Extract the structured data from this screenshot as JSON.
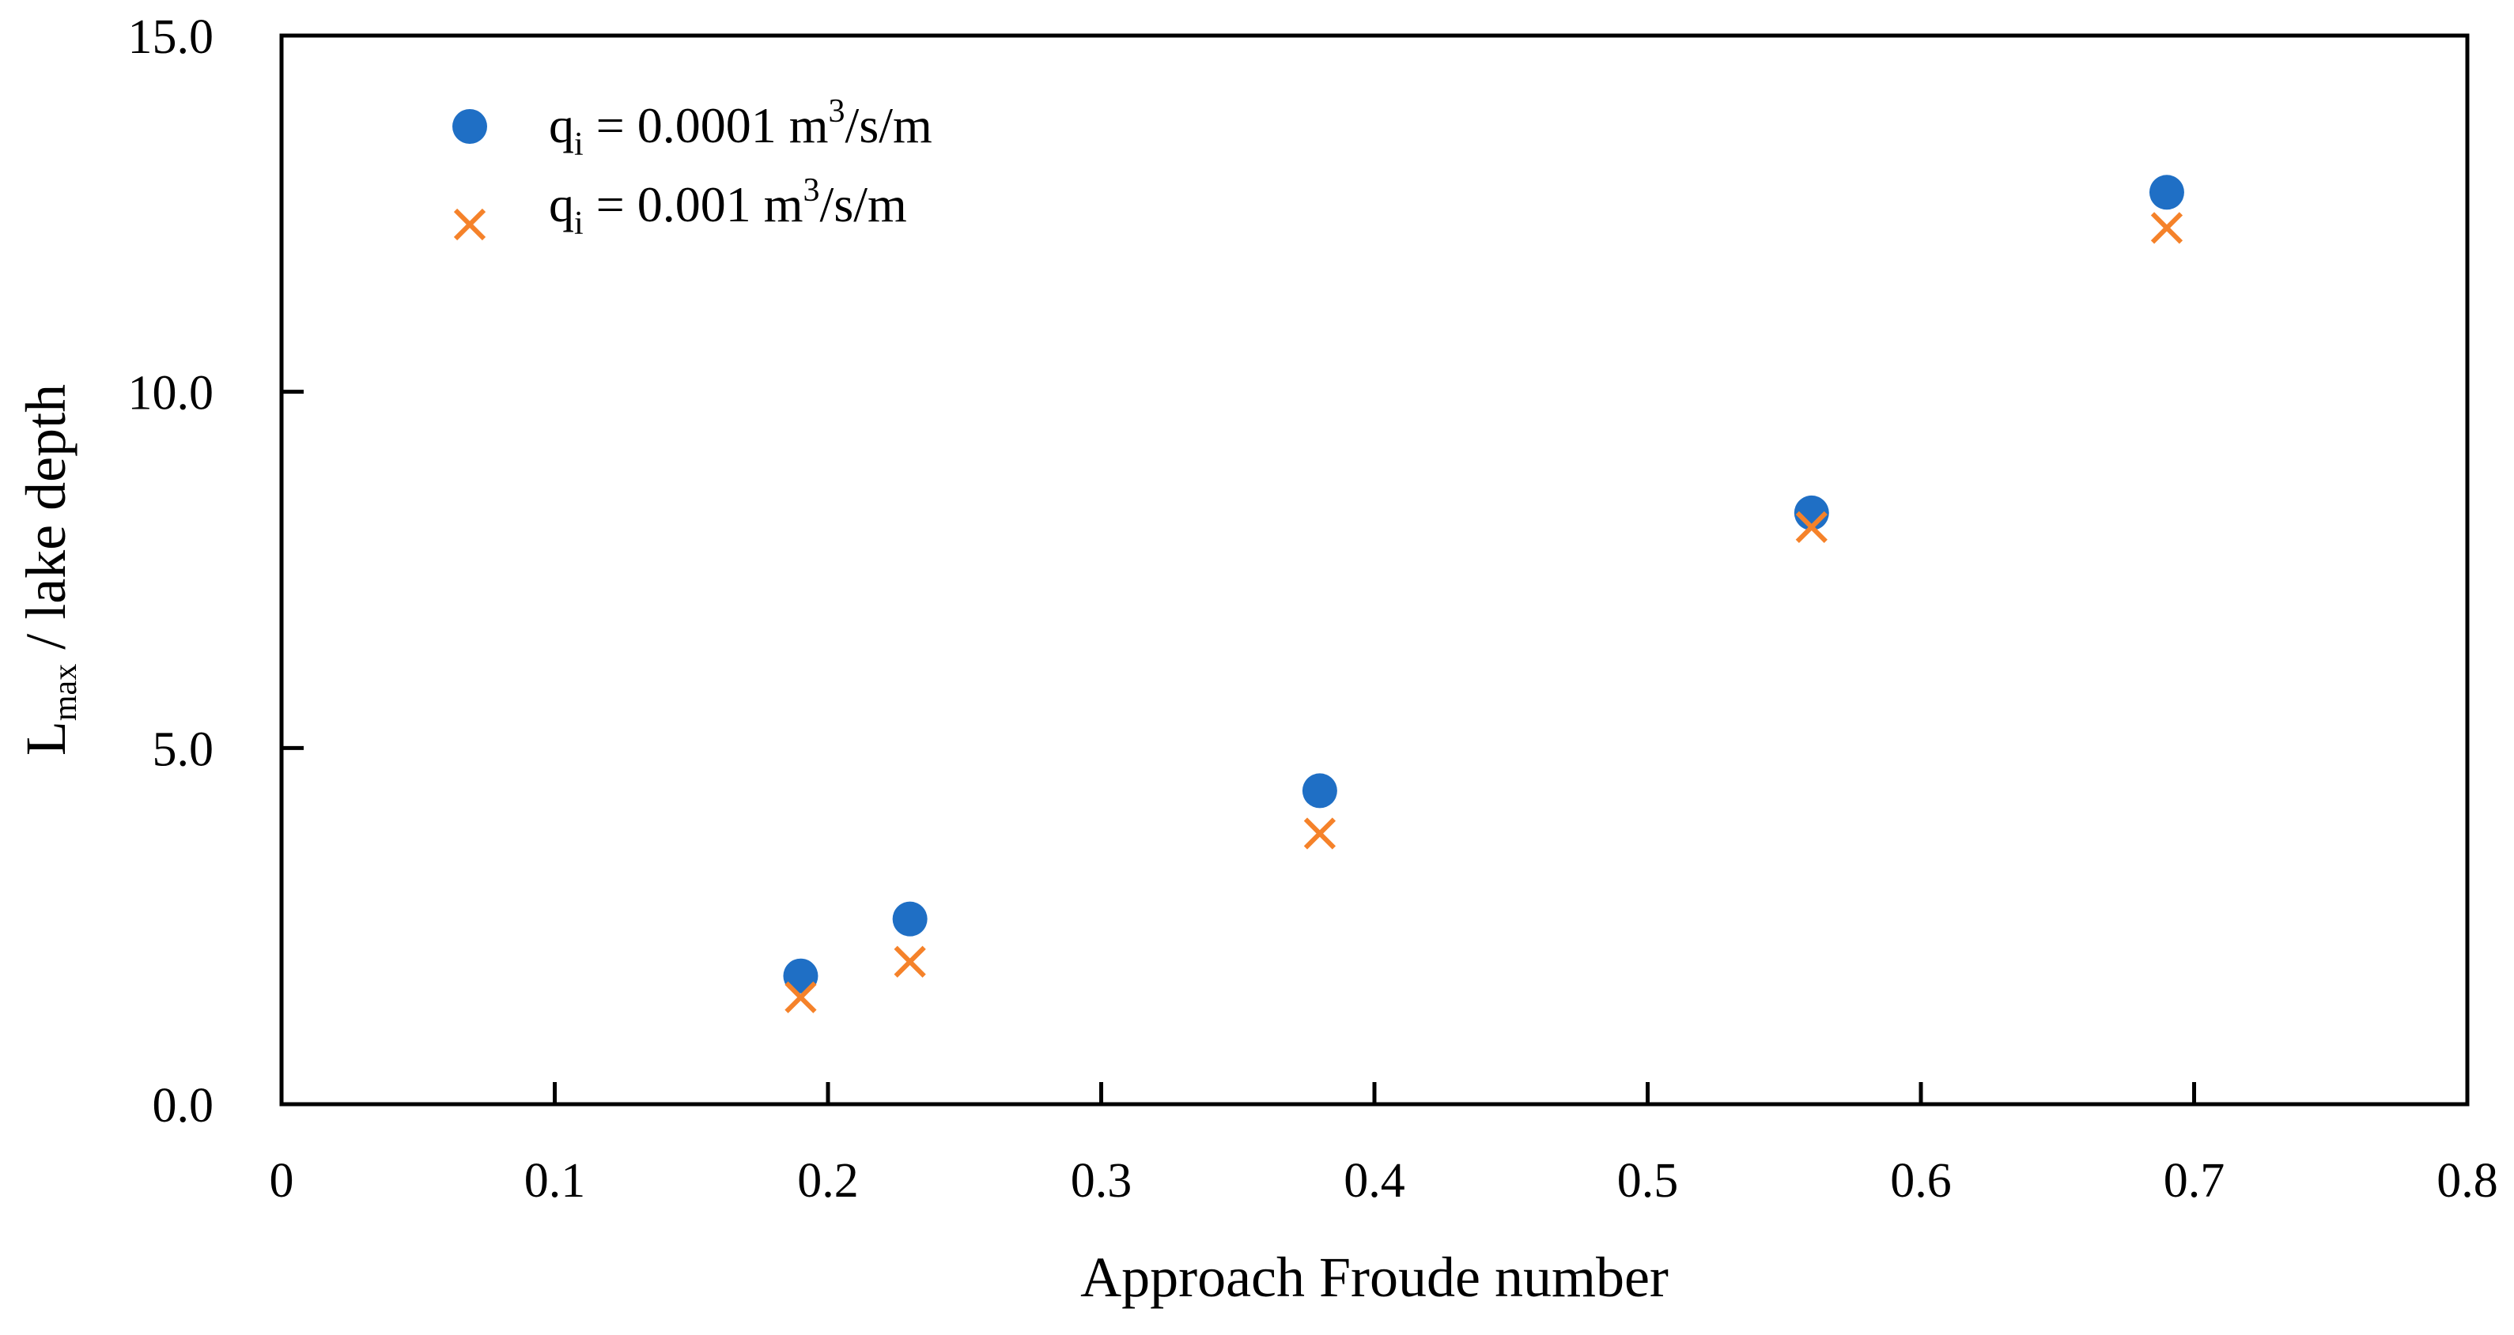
{
  "chart_data": {
    "type": "scatter",
    "title": "",
    "xlabel": "Approach Froude number",
    "ylabel": {
      "main": "L",
      "sub": "max",
      "rest": " / lake depth"
    },
    "xlim": [
      0,
      0.8
    ],
    "ylim": [
      0,
      15
    ],
    "x_ticks": [
      0,
      0.1,
      0.2,
      0.3,
      0.4,
      0.5,
      0.6,
      0.7,
      0.8
    ],
    "x_tick_labels": [
      "0",
      "0.1",
      "0.2",
      "0.3",
      "0.4",
      "0.5",
      "0.6",
      "0.7",
      "0.8"
    ],
    "y_ticks": [
      0,
      5,
      10,
      15
    ],
    "y_tick_labels": [
      "0.0",
      "5.0",
      "10.0",
      "15.0"
    ],
    "grid": false,
    "legend_position": "top-left",
    "series": [
      {
        "name": "q_i = 0.0001 m3/s/m",
        "legend": {
          "q": "q",
          "sub": "i",
          "mid": " = 0.0001 m",
          "sup": "3",
          "tail": "/s/m"
        },
        "marker": "circle",
        "color": "#1f6fc5",
        "x": [
          0.19,
          0.23,
          0.38,
          0.56,
          0.69
        ],
        "y": [
          1.8,
          2.6,
          4.4,
          8.3,
          12.8
        ]
      },
      {
        "name": "q_i = 0.001 m3/s/m",
        "legend": {
          "q": "q",
          "sub": "i",
          "mid": " = 0.001 m",
          "sup": "3",
          "tail": "/s/m"
        },
        "marker": "x",
        "color": "#f5822a",
        "x": [
          0.19,
          0.23,
          0.38,
          0.56,
          0.69
        ],
        "y": [
          1.5,
          2.0,
          3.8,
          8.1,
          12.3
        ]
      }
    ]
  }
}
